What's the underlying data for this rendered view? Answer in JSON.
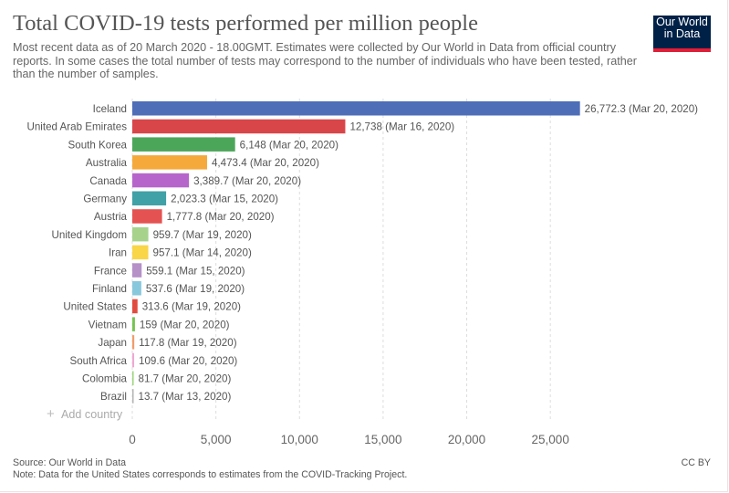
{
  "header": {
    "title": "Total COVID-19 tests performed per million people",
    "subtitle": "Most recent data as of 20 March 2020 - 18.00GMT. Estimates were collected by Our World in Data from official country reports. In some cases the total number of tests may correspond to the number of individuals who have been tested, rather than the number of samples.",
    "logo_line1": "Our World",
    "logo_line2": "in Data"
  },
  "add_country": {
    "icon": "plus-icon",
    "label": "Add country"
  },
  "footer": {
    "source": "Source: Our World in Data",
    "note": "Note: Data for the United States corresponds to estimates from the COVID-Tracking Project.",
    "license": "CC BY"
  },
  "chart_data": {
    "type": "bar",
    "orientation": "horizontal",
    "title": "Total COVID-19 tests performed per million people",
    "categories": [
      "Iceland",
      "United Arab Emirates",
      "South Korea",
      "Australia",
      "Canada",
      "Germany",
      "Austria",
      "United Kingdom",
      "Iran",
      "France",
      "Finland",
      "United States",
      "Vietnam",
      "Japan",
      "South Africa",
      "Colombia",
      "Brazil"
    ],
    "values": [
      26772.3,
      12738,
      6148,
      4473.4,
      3389.7,
      2023.3,
      1777.8,
      959.7,
      957.1,
      559.1,
      537.6,
      313.6,
      159,
      117.8,
      109.6,
      81.7,
      13.7
    ],
    "value_labels": [
      "26,772.3 (Mar 20, 2020)",
      "12,738 (Mar 16, 2020)",
      "6,148 (Mar 20, 2020)",
      "4,473.4 (Mar 20, 2020)",
      "3,389.7 (Mar 20, 2020)",
      "2,023.3 (Mar 15, 2020)",
      "1,777.8 (Mar 20, 2020)",
      "959.7 (Mar 19, 2020)",
      "957.1 (Mar 14, 2020)",
      "559.1 (Mar 15, 2020)",
      "537.6 (Mar 19, 2020)",
      "313.6 (Mar 19, 2020)",
      "159 (Mar 20, 2020)",
      "117.8 (Mar 19, 2020)",
      "109.6 (Mar 20, 2020)",
      "81.7 (Mar 20, 2020)",
      "13.7 (Mar 13, 2020)"
    ],
    "colors": [
      "#4e6eb8",
      "#d8464a",
      "#4ca65a",
      "#f6a93b",
      "#b666cb",
      "#40a1a6",
      "#e55252",
      "#a6d28c",
      "#f9d548",
      "#b591c8",
      "#88c8dc",
      "#e24c3f",
      "#76c451",
      "#f29c6a",
      "#f0a7d2",
      "#9dd67d",
      "#b4b4b4"
    ],
    "xlim": [
      0,
      27500
    ],
    "xticks": [
      0,
      5000,
      10000,
      15000,
      20000,
      25000
    ],
    "xtick_labels": [
      "0",
      "5,000",
      "10,000",
      "15,000",
      "20,000",
      "25,000"
    ],
    "xlabel": "",
    "ylabel": "",
    "grid": "vertical-dashed"
  }
}
